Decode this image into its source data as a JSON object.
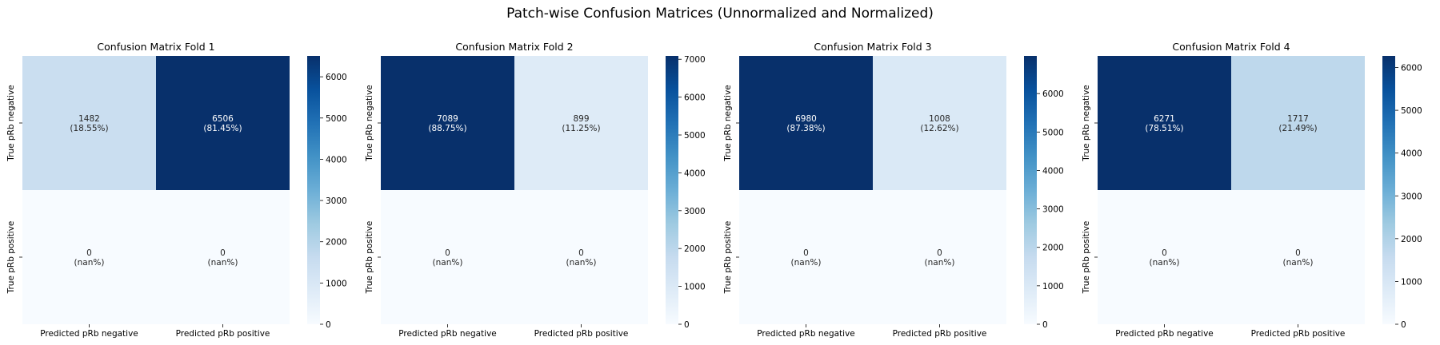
{
  "figure": {
    "suptitle": "Patch-wise Confusion Matrices (Unnormalized and Normalized)"
  },
  "colormap": {
    "name": "Blues",
    "stops": [
      "#f7fbff",
      "#deebf7",
      "#c6dbef",
      "#9ecae1",
      "#6baed6",
      "#4292c6",
      "#2171b5",
      "#08519c",
      "#08306b"
    ],
    "text_dark": "#262626",
    "text_light": "#ffffff"
  },
  "chart_data": [
    {
      "type": "heatmap",
      "title": "Confusion Matrix Fold 1",
      "x_labels": [
        "Predicted pRb negative",
        "Predicted pRb positive"
      ],
      "y_labels": [
        "True pRb negative",
        "True pRb positive"
      ],
      "values": [
        [
          1482,
          6506
        ],
        [
          0,
          0
        ]
      ],
      "annotations": [
        [
          "1482\n(18.55%)",
          "6506\n(81.45%)"
        ],
        [
          "0\n(nan%)",
          "0\n(nan%)"
        ]
      ],
      "vmin": 0,
      "vmax": 6506,
      "colorbar_ticks": [
        0,
        1000,
        2000,
        3000,
        4000,
        5000,
        6000
      ]
    },
    {
      "type": "heatmap",
      "title": "Confusion Matrix Fold 2",
      "x_labels": [
        "Predicted pRb negative",
        "Predicted pRb positive"
      ],
      "y_labels": [
        "True pRb negative",
        "True pRb positive"
      ],
      "values": [
        [
          7089,
          899
        ],
        [
          0,
          0
        ]
      ],
      "annotations": [
        [
          "7089\n(88.75%)",
          "899\n(11.25%)"
        ],
        [
          "0\n(nan%)",
          "0\n(nan%)"
        ]
      ],
      "vmin": 0,
      "vmax": 7089,
      "colorbar_ticks": [
        0,
        1000,
        2000,
        3000,
        4000,
        5000,
        6000,
        7000
      ]
    },
    {
      "type": "heatmap",
      "title": "Confusion Matrix Fold 3",
      "x_labels": [
        "Predicted pRb negative",
        "Predicted pRb positive"
      ],
      "y_labels": [
        "True pRb negative",
        "True pRb positive"
      ],
      "values": [
        [
          6980,
          1008
        ],
        [
          0,
          0
        ]
      ],
      "annotations": [
        [
          "6980\n(87.38%)",
          "1008\n(12.62%)"
        ],
        [
          "0\n(nan%)",
          "0\n(nan%)"
        ]
      ],
      "vmin": 0,
      "vmax": 6980,
      "colorbar_ticks": [
        0,
        1000,
        2000,
        3000,
        4000,
        5000,
        6000
      ]
    },
    {
      "type": "heatmap",
      "title": "Confusion Matrix Fold 4",
      "x_labels": [
        "Predicted pRb negative",
        "Predicted pRb positive"
      ],
      "y_labels": [
        "True pRb negative",
        "True pRb positive"
      ],
      "values": [
        [
          6271,
          1717
        ],
        [
          0,
          0
        ]
      ],
      "annotations": [
        [
          "6271\n(78.51%)",
          "1717\n(21.49%)"
        ],
        [
          "0\n(nan%)",
          "0\n(nan%)"
        ]
      ],
      "vmin": 0,
      "vmax": 6271,
      "colorbar_ticks": [
        0,
        1000,
        2000,
        3000,
        4000,
        5000,
        6000
      ]
    }
  ]
}
